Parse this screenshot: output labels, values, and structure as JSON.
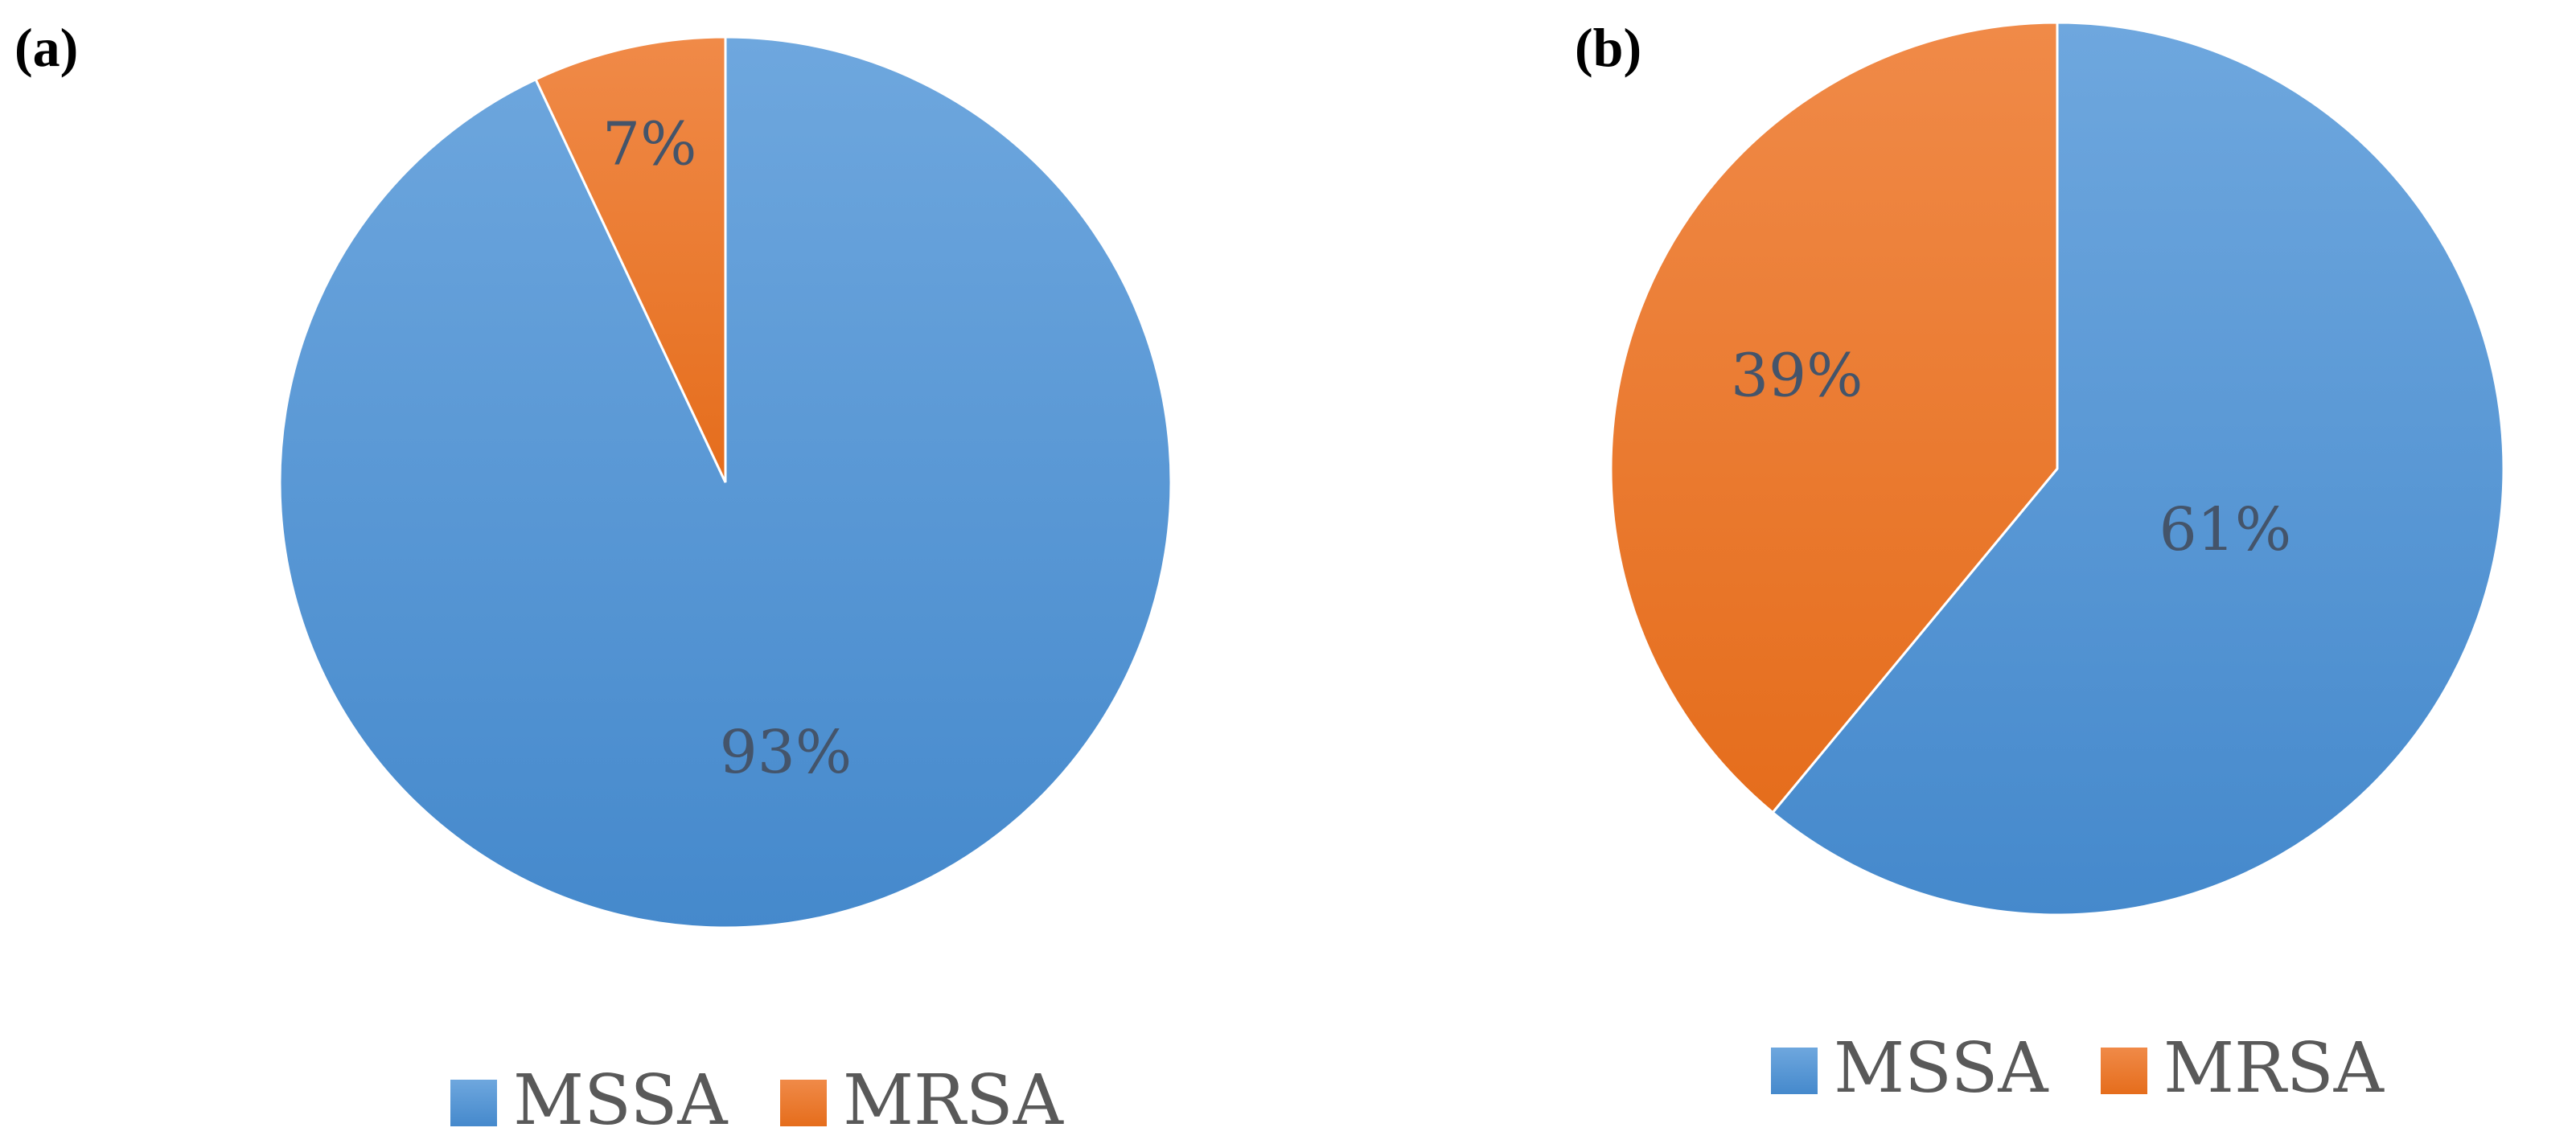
{
  "colors": {
    "mssa": "#5b9bd5",
    "mrsa": "#ed7d31"
  },
  "chart_data": [
    {
      "type": "pie",
      "panel_label": "(a)",
      "categories": [
        "MSSA",
        "MRSA"
      ],
      "values": [
        93,
        7
      ],
      "data_labels": [
        "93%",
        "7%"
      ],
      "legend": [
        "MSSA",
        "MRSA"
      ],
      "legend_position": "bottom"
    },
    {
      "type": "pie",
      "panel_label": "(b)",
      "categories": [
        "MSSA",
        "MRSA"
      ],
      "values": [
        61,
        39
      ],
      "data_labels": [
        "61%",
        "39%"
      ],
      "legend": [
        "MSSA",
        "MRSA"
      ],
      "legend_position": "bottom"
    }
  ]
}
